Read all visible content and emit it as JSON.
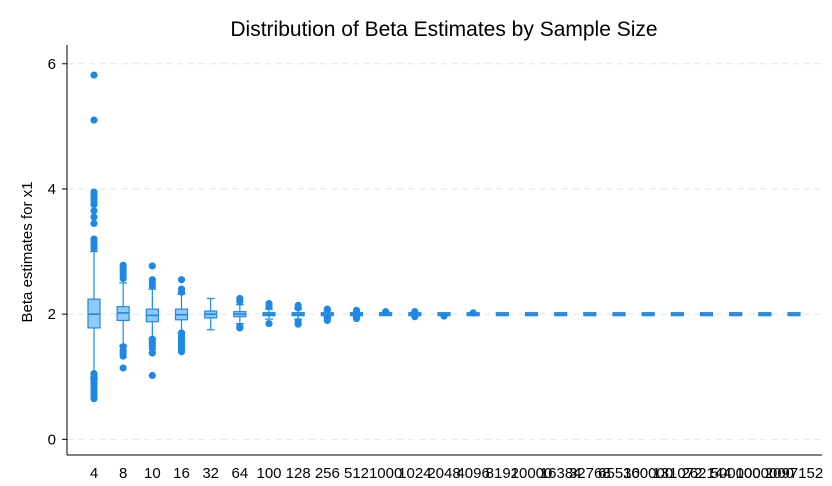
{
  "chart_data": {
    "type": "box",
    "title": "Distribution of Beta Estimates by Sample Size",
    "xlabel": "",
    "ylabel": "Beta estimates for x1",
    "ylim": [
      -0.25,
      6.3
    ],
    "yticks": [
      0,
      2,
      4,
      6
    ],
    "grid": "horizontal-dashed",
    "legend": "none",
    "color": "#1E88E5",
    "fill_color": "#90CAF9",
    "categories": [
      "4",
      "8",
      "10",
      "16",
      "32",
      "64",
      "100",
      "128",
      "256",
      "512",
      "1000",
      "1024",
      "2048",
      "4096",
      "8192",
      "10000",
      "16384",
      "32768",
      "65536",
      "100000",
      "131072",
      "262144",
      "500000",
      "1000000",
      "2097152"
    ],
    "boxes": [
      {
        "min": 0.98,
        "q1": 1.78,
        "median": 2.0,
        "q3": 2.24,
        "max": 3.0,
        "outliers": [
          5.82,
          5.1,
          3.95,
          3.9,
          3.85,
          3.8,
          3.75,
          3.65,
          3.55,
          3.45,
          3.2,
          3.15,
          3.1,
          3.05,
          1.05,
          1.0,
          0.95,
          0.9,
          0.85,
          0.8,
          0.75,
          0.7,
          0.65
        ]
      },
      {
        "min": 1.5,
        "q1": 1.9,
        "median": 2.02,
        "q3": 2.12,
        "max": 2.5,
        "outliers": [
          2.78,
          2.73,
          2.68,
          2.62,
          2.57,
          1.48,
          1.42,
          1.38,
          1.33,
          1.14
        ]
      },
      {
        "min": 1.6,
        "q1": 1.88,
        "median": 1.98,
        "q3": 2.08,
        "max": 2.4,
        "outliers": [
          2.77,
          2.55,
          2.5,
          2.45,
          1.6,
          1.55,
          1.5,
          1.45,
          1.38,
          1.02
        ]
      },
      {
        "min": 1.7,
        "q1": 1.91,
        "median": 1.99,
        "q3": 2.08,
        "max": 2.32,
        "outliers": [
          2.55,
          2.4,
          2.35,
          1.7,
          1.65,
          1.6,
          1.55,
          1.5,
          1.45,
          1.4
        ]
      },
      {
        "min": 1.75,
        "q1": 1.94,
        "median": 2.0,
        "q3": 2.05,
        "max": 2.25,
        "outliers": []
      },
      {
        "min": 1.85,
        "q1": 1.96,
        "median": 2.0,
        "q3": 2.04,
        "max": 2.15,
        "outliers": [
          2.25,
          2.2,
          1.8,
          1.78
        ]
      },
      {
        "min": 1.92,
        "q1": 1.99,
        "median": 2.0,
        "q3": 2.02,
        "max": 2.08,
        "outliers": [
          2.17,
          2.12,
          1.85
        ]
      },
      {
        "min": 1.92,
        "q1": 1.99,
        "median": 2.0,
        "q3": 2.01,
        "max": 2.08,
        "outliers": [
          2.14,
          2.1,
          1.88,
          1.84
        ]
      },
      {
        "min": 1.95,
        "q1": 1.99,
        "median": 2.0,
        "q3": 2.01,
        "max": 2.05,
        "outliers": [
          2.08,
          1.93,
          1.9
        ]
      },
      {
        "min": 1.97,
        "q1": 1.99,
        "median": 2.0,
        "q3": 2.01,
        "max": 2.03,
        "outliers": [
          2.06,
          2.05,
          1.95,
          1.93
        ]
      },
      {
        "min": 1.98,
        "q1": 1.995,
        "median": 2.0,
        "q3": 2.005,
        "max": 2.02,
        "outliers": [
          2.04,
          2.03
        ]
      },
      {
        "min": 1.98,
        "q1": 1.995,
        "median": 2.0,
        "q3": 2.005,
        "max": 2.02,
        "outliers": [
          2.04,
          2.03,
          1.96
        ]
      },
      {
        "min": 1.985,
        "q1": 1.995,
        "median": 2.0,
        "q3": 2.003,
        "max": 2.01,
        "outliers": [
          1.97
        ]
      },
      {
        "min": 1.99,
        "q1": 1.997,
        "median": 2.0,
        "q3": 2.003,
        "max": 2.01,
        "outliers": [
          2.02
        ]
      },
      {
        "min": 1.99,
        "q1": 1.998,
        "median": 2.0,
        "q3": 2.002,
        "max": 2.006,
        "outliers": []
      },
      {
        "min": 1.99,
        "q1": 1.998,
        "median": 2.0,
        "q3": 2.002,
        "max": 2.006,
        "outliers": []
      },
      {
        "min": 1.995,
        "q1": 1.999,
        "median": 2.0,
        "q3": 2.001,
        "max": 2.004,
        "outliers": []
      },
      {
        "min": 1.996,
        "q1": 1.999,
        "median": 2.0,
        "q3": 2.001,
        "max": 2.003,
        "outliers": []
      },
      {
        "min": 1.997,
        "q1": 1.999,
        "median": 2.0,
        "q3": 2.001,
        "max": 2.002,
        "outliers": []
      },
      {
        "min": 1.998,
        "q1": 1.9995,
        "median": 2.0,
        "q3": 2.0005,
        "max": 2.002,
        "outliers": []
      },
      {
        "min": 1.998,
        "q1": 1.9995,
        "median": 2.0,
        "q3": 2.0005,
        "max": 2.002,
        "outliers": []
      },
      {
        "min": 1.999,
        "q1": 1.9997,
        "median": 2.0,
        "q3": 2.0003,
        "max": 2.001,
        "outliers": []
      },
      {
        "min": 1.999,
        "q1": 1.9998,
        "median": 2.0,
        "q3": 2.0002,
        "max": 2.001,
        "outliers": []
      },
      {
        "min": 1.9995,
        "q1": 1.9999,
        "median": 2.0,
        "q3": 2.0001,
        "max": 2.0005,
        "outliers": []
      },
      {
        "min": 1.9996,
        "q1": 1.9999,
        "median": 2.0,
        "q3": 2.0001,
        "max": 2.0004,
        "outliers": []
      }
    ]
  }
}
